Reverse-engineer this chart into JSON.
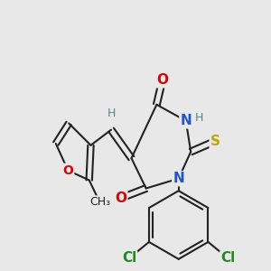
{
  "background_color": "#e8e8e8",
  "bond_color": "#222222",
  "bond_width": 1.5,
  "fig_width": 3.0,
  "fig_height": 3.0,
  "dpi": 100,
  "colors": {
    "O": "#dd0000",
    "N": "#2255cc",
    "S": "#bbaa00",
    "Cl": "#228822",
    "H": "#558888",
    "C": "#222222"
  }
}
